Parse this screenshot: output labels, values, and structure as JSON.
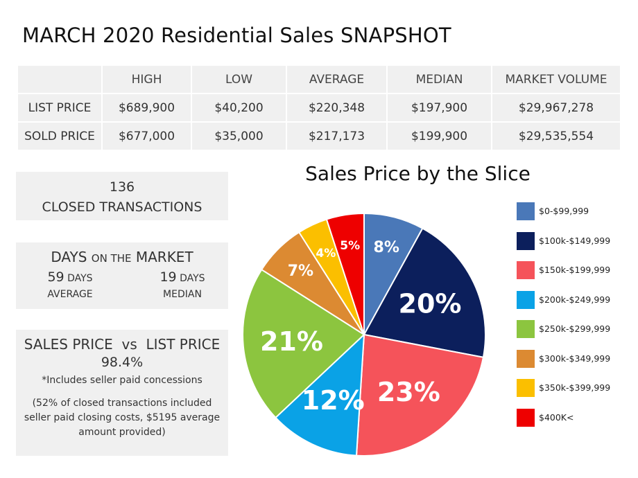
{
  "title": "MARCH 2020 Residential Sales SNAPSHOT",
  "table": {
    "headers": [
      "",
      "HIGH",
      "LOW",
      "AVERAGE",
      "MEDIAN",
      "MARKET VOLUME"
    ],
    "rows": [
      [
        "LIST PRICE",
        "$689,900",
        "$40,200",
        "$220,348",
        "$197,900",
        "$29,967,278"
      ],
      [
        "SOLD PRICE",
        "$677,000",
        "$35,000",
        "$217,173",
        "$199,900",
        "$29,535,554"
      ]
    ]
  },
  "closed": {
    "count": "136",
    "label": "CLOSED TRANSACTIONS"
  },
  "dom": {
    "title_a": "DAYS ",
    "title_b": "ON THE",
    "title_c": " MARKET",
    "avg_num": "59",
    "avg_unit": " DAYS",
    "avg_label": "AVERAGE",
    "med_num": "19",
    "med_unit": " DAYS",
    "med_label": "MEDIAN"
  },
  "sales_vs_list": {
    "title": "SALES PRICE  vs  LIST PRICE",
    "value": "98.4%",
    "note": "*Includes seller paid concessions",
    "para": "(52% of closed transactions included seller paid closing costs, $5195 average amount provided)"
  },
  "chart_data": {
    "type": "pie",
    "title": "Sales Price by the Slice",
    "start_angle_deg": 0,
    "direction": "clockwise",
    "slices": [
      {
        "label": "$0-$99,999",
        "value": 8,
        "display": "8%",
        "color": "#4a78b8"
      },
      {
        "label": "$100k-$149,999",
        "value": 20,
        "display": "20%",
        "color": "#0c1f5c"
      },
      {
        "label": "$150k-$199,999",
        "value": 23,
        "display": "23%",
        "color": "#f5535a"
      },
      {
        "label": "$200k-$249,999",
        "value": 12,
        "display": "12%",
        "color": "#0aa2e6"
      },
      {
        "label": "$250k-$299,999",
        "value": 21,
        "display": "21%",
        "color": "#8cc53f"
      },
      {
        "label": "$300k-$349,999",
        "value": 7,
        "display": "7%",
        "color": "#dc8a32"
      },
      {
        "label": "$350k-$399,999",
        "value": 4,
        "display": "4%",
        "color": "#fbbf00"
      },
      {
        "label": "$400K<",
        "value": 5,
        "display": "5%",
        "color": "#ee0000"
      }
    ],
    "legend": "right"
  }
}
